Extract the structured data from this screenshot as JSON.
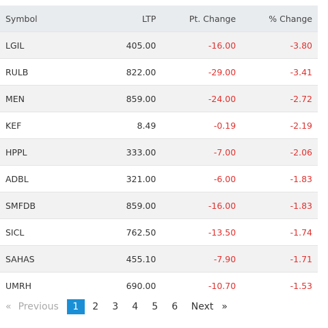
{
  "table": {
    "columns": [
      "Symbol",
      "LTP",
      "Pt. Change",
      "% Change"
    ],
    "rows": [
      [
        "LGIL",
        "405.00",
        "-16.00",
        "-3.80"
      ],
      [
        "RULB",
        "822.00",
        "-29.00",
        "-3.41"
      ],
      [
        "MEN",
        "859.00",
        "-24.00",
        "-2.72"
      ],
      [
        "KEF",
        "8.49",
        "-0.19",
        "-2.19"
      ],
      [
        "HPPL",
        "333.00",
        "-7.00",
        "-2.06"
      ],
      [
        "ADBL",
        "321.00",
        "-6.00",
        "-1.83"
      ],
      [
        "SMFDB",
        "859.00",
        "-16.00",
        "-1.83"
      ],
      [
        "SICL",
        "762.50",
        "-13.50",
        "-1.74"
      ],
      [
        "SAHAS",
        "455.10",
        "-7.90",
        "-1.71"
      ],
      [
        "UMRH",
        "690.00",
        "-10.70",
        "-1.53"
      ]
    ]
  },
  "pagination": {
    "prev_arrow": "«",
    "prev": "Previous",
    "pages": [
      "1",
      "2",
      "3",
      "4",
      "5",
      "6"
    ],
    "next": "Next",
    "next_arrow": "»"
  }
}
